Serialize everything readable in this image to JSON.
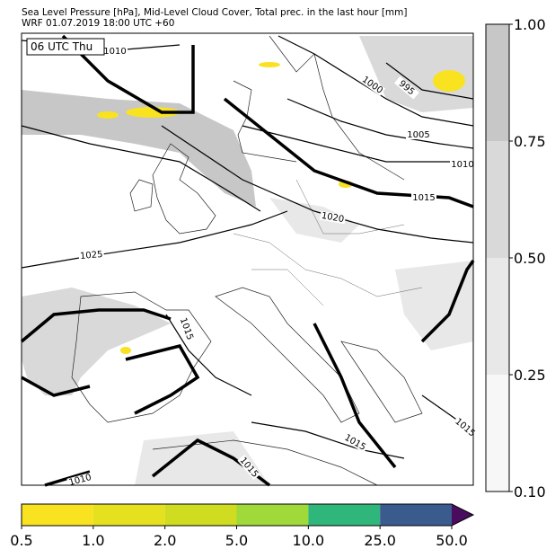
{
  "header": {
    "line1": "Sea Level Pressure [hPa], Mid-Level Cloud Cover, Total prec. in the last hour [mm]",
    "line2": "WRF 01.07.2019 18:00 UTC +60"
  },
  "map": {
    "time_label": "06 UTC Thu",
    "isobar_labels": [
      "1010",
      "1000",
      "995",
      "1005",
      "1010",
      "1015",
      "1020",
      "1025",
      "1015",
      "1015",
      "1015",
      "1015",
      "1010"
    ]
  },
  "cloud_colorbar": {
    "colors": [
      "#f7f7f7",
      "#e8e8e8",
      "#d9d9d9",
      "#c7c7c7"
    ],
    "ticks": [
      {
        "value": 0.1,
        "label": "0.10"
      },
      0.25,
      {
        "value": 0.5,
        "label": "0.50"
      },
      0.75,
      {
        "value": 1,
        "label": "1.00"
      }
    ]
  },
  "precip_colorbar": {
    "colors": [
      "#f9e21f",
      "#e5e11f",
      "#cfdc1f",
      "#a0d93a",
      "#2fb77b",
      "#3a5b8e",
      "#4a0c5c"
    ],
    "ticks": [
      0.5,
      {
        "value": 1,
        "label": "1.0"
      },
      {
        "value": 2,
        "label": "2.0"
      },
      {
        "value": 5,
        "label": "5.0"
      },
      {
        "value": 10,
        "label": "10.0"
      },
      {
        "value": 25,
        "label": "25.0"
      },
      {
        "value": 50,
        "label": "50.0"
      }
    ]
  }
}
